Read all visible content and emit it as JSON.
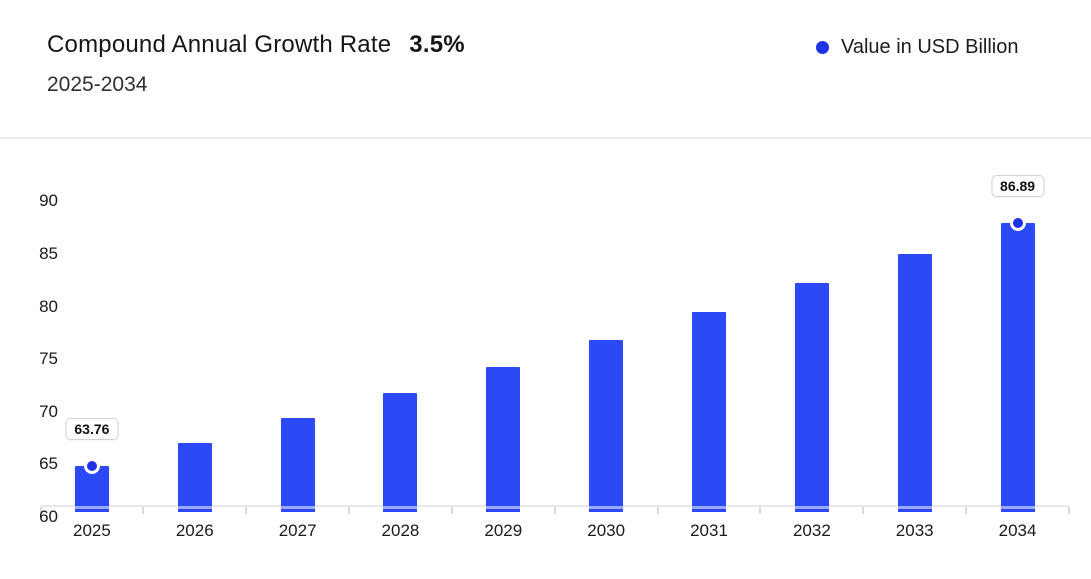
{
  "header": {
    "title": "Compound Annual Growth Rate",
    "cagr_value": "3.5%",
    "subtitle": "2025-2034"
  },
  "legend": {
    "label": "Value in USD Billion"
  },
  "chart_data": {
    "type": "bar",
    "title": "Compound Annual Growth Rate 3.5% (2025-2034)",
    "categories": [
      "2025",
      "2026",
      "2027",
      "2028",
      "2029",
      "2030",
      "2031",
      "2032",
      "2033",
      "2034"
    ],
    "series": [
      {
        "name": "Value in USD Billion",
        "values": [
          63.76,
          65.99,
          68.3,
          70.69,
          73.17,
          75.73,
          78.38,
          81.12,
          83.96,
          86.89
        ]
      }
    ],
    "yticks": [
      60,
      65,
      70,
      75,
      80,
      85,
      90
    ],
    "ylim": [
      60,
      90
    ],
    "annotations": [
      {
        "category": "2025",
        "label": "63.76"
      },
      {
        "category": "2034",
        "label": "86.89"
      }
    ],
    "xlabel": "",
    "ylabel": "",
    "grid": "off",
    "legend_position": "top-right",
    "bar_color": "#2b49f4",
    "marker_color": "#1e32e8",
    "axis_color": "#e7e7e9"
  }
}
